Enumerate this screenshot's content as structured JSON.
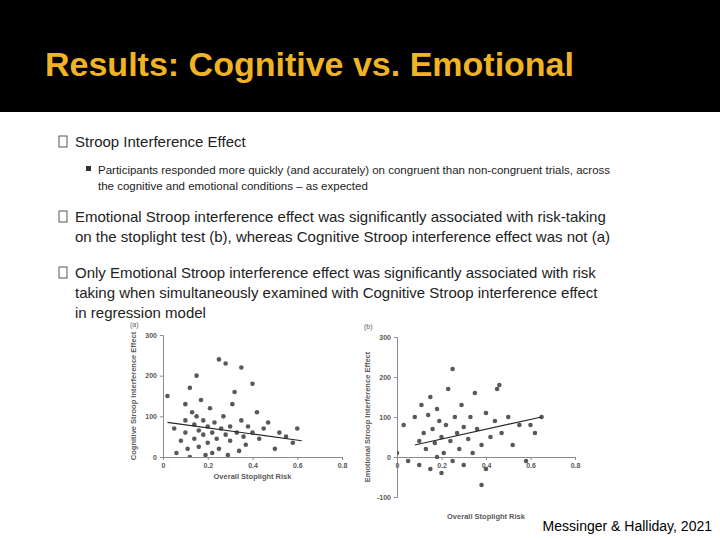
{
  "slide": {
    "title": "Results: Cognitive vs. Emotional",
    "bullets": [
      {
        "lines": [
          "Stroop Interference Effect"
        ],
        "sub": [
          {
            "lines": [
              "Participants responded more quickly (and accurately) on congruent than non-congruent trials, across",
              "the cognitive and emotional conditions – as expected"
            ]
          }
        ]
      },
      {
        "lines": [
          "Emotional Stroop interference effect was significantly associated with risk-taking",
          "on the stoplight test (b), whereas Cognitive Stroop interference effect was not (a)"
        ]
      },
      {
        "lines": [
          "Only Emotional Stroop interference effect was significantly associated with risk",
          "taking when simultaneously examined with Cognitive Stroop interference effect",
          "in regression model"
        ]
      }
    ],
    "citation": "Messinger & Halliday, 2021"
  },
  "chart_data": [
    {
      "type": "scatter",
      "title": "(a)",
      "x_label": "Overall Stoplight Risk",
      "y_label": "Cognitive Stroop Interference Effect",
      "xlim": [
        0,
        0.8
      ],
      "ylim": [
        0,
        300
      ],
      "xticks": [
        0,
        0.2,
        0.4,
        0.6,
        0.8
      ],
      "yticks": [
        0,
        100,
        200,
        300
      ],
      "grid": false,
      "series": [
        {
          "type": "scatter",
          "marker": "circle",
          "color": "#595959",
          "x": [
            0.02,
            0.05,
            0.06,
            0.08,
            0.1,
            0.1,
            0.1,
            0.11,
            0.12,
            0.12,
            0.13,
            0.14,
            0.14,
            0.15,
            0.15,
            0.16,
            0.16,
            0.17,
            0.18,
            0.18,
            0.19,
            0.2,
            0.2,
            0.21,
            0.22,
            0.22,
            0.23,
            0.24,
            0.25,
            0.25,
            0.26,
            0.27,
            0.28,
            0.28,
            0.29,
            0.3,
            0.3,
            0.31,
            0.32,
            0.33,
            0.34,
            0.35,
            0.35,
            0.36,
            0.37,
            0.38,
            0.4,
            0.4,
            0.42,
            0.43,
            0.45,
            0.47,
            0.5,
            0.52,
            0.55,
            0.58,
            0.6
          ],
          "values": [
            150,
            70,
            10,
            40,
            130,
            90,
            60,
            20,
            0,
            170,
            110,
            80,
            45,
            200,
            100,
            65,
            25,
            140,
            90,
            55,
            5,
            75,
            35,
            120,
            60,
            10,
            85,
            45,
            240,
            20,
            70,
            100,
            55,
            230,
            5,
            75,
            40,
            130,
            160,
            60,
            15,
            220,
            90,
            50,
            30,
            75,
            180,
            60,
            110,
            45,
            70,
            85,
            20,
            60,
            50,
            35,
            70
          ]
        },
        {
          "type": "line",
          "line_style": "solid",
          "color": "#262626",
          "x": [
            0.02,
            0.62
          ],
          "values": [
            85,
            40
          ]
        }
      ]
    },
    {
      "type": "scatter",
      "title": "(b)",
      "x_label": "Overall Stoplight Risk",
      "y_label": "Emotional Stroop Interference Effect",
      "xlim": [
        0,
        0.8
      ],
      "ylim": [
        -100,
        300
      ],
      "xticks": [
        0,
        0.2,
        0.4,
        0.6,
        0.8
      ],
      "yticks": [
        -100,
        0,
        100,
        200,
        300
      ],
      "grid": false,
      "series": [
        {
          "type": "scatter",
          "marker": "circle",
          "color": "#595959",
          "x": [
            0.0,
            0.03,
            0.05,
            0.08,
            0.1,
            0.1,
            0.11,
            0.12,
            0.13,
            0.14,
            0.15,
            0.15,
            0.16,
            0.17,
            0.18,
            0.18,
            0.19,
            0.2,
            0.2,
            0.21,
            0.22,
            0.23,
            0.24,
            0.25,
            0.25,
            0.26,
            0.27,
            0.28,
            0.29,
            0.3,
            0.3,
            0.32,
            0.33,
            0.34,
            0.35,
            0.36,
            0.38,
            0.38,
            0.4,
            0.4,
            0.42,
            0.44,
            0.45,
            0.46,
            0.47,
            0.5,
            0.52,
            0.55,
            0.58,
            0.6,
            0.62,
            0.65
          ],
          "values": [
            10,
            80,
            -10,
            100,
            40,
            -20,
            130,
            60,
            20,
            105,
            -30,
            150,
            70,
            35,
            0,
            120,
            90,
            50,
            -40,
            10,
            80,
            170,
            40,
            220,
            -10,
            100,
            60,
            20,
            130,
            75,
            -20,
            45,
            100,
            10,
            160,
            70,
            -70,
            30,
            110,
            -30,
            50,
            90,
            170,
            180,
            60,
            100,
            30,
            80,
            -10,
            80,
            60,
            100
          ]
        },
        {
          "type": "line",
          "line_style": "solid",
          "color": "#262626",
          "x": [
            0.08,
            0.65
          ],
          "values": [
            30,
            100
          ]
        }
      ]
    }
  ]
}
